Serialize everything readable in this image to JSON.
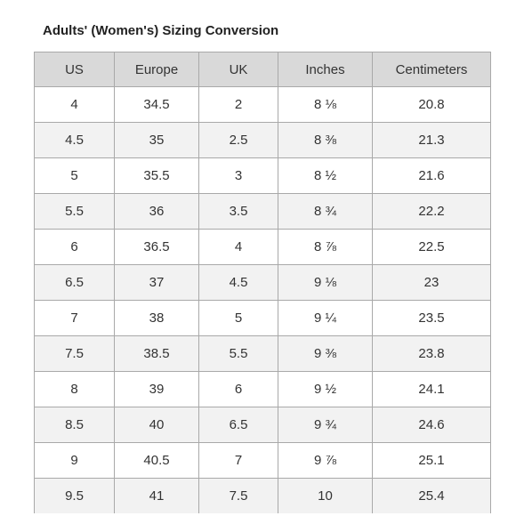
{
  "title": "Adults' (Women's) Sizing Conversion",
  "table": {
    "headers": [
      "US",
      "Europe",
      "UK",
      "Inches",
      "Centimeters"
    ],
    "rows": [
      [
        "4",
        "34.5",
        "2",
        "8 ⅛",
        "20.8"
      ],
      [
        "4.5",
        "35",
        "2.5",
        "8 ⅜",
        "21.3"
      ],
      [
        "5",
        "35.5",
        "3",
        "8 ½",
        "21.6"
      ],
      [
        "5.5",
        "36",
        "3.5",
        "8 ¾",
        "22.2"
      ],
      [
        "6",
        "36.5",
        "4",
        "8 ⅞",
        "22.5"
      ],
      [
        "6.5",
        "37",
        "4.5",
        "9 ⅛",
        "23"
      ],
      [
        "7",
        "38",
        "5",
        "9 ¼",
        "23.5"
      ],
      [
        "7.5",
        "38.5",
        "5.5",
        "9 ⅜",
        "23.8"
      ],
      [
        "8",
        "39",
        "6",
        "9 ½",
        "24.1"
      ],
      [
        "8.5",
        "40",
        "6.5",
        "9 ¾",
        "24.6"
      ],
      [
        "9",
        "40.5",
        "7",
        "9 ⅞",
        "25.1"
      ],
      [
        "9.5",
        "41",
        "7.5",
        "10",
        "25.4"
      ]
    ]
  }
}
